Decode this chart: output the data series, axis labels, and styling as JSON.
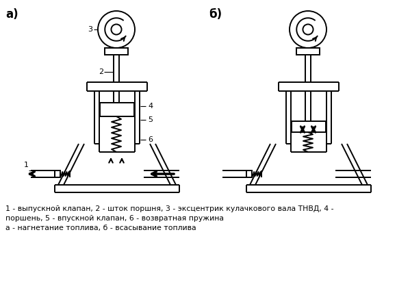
{
  "title_a": "а)",
  "title_b": "б)",
  "caption1": "1 - выпускной клапан, 2 - шток поршня, 3 - эксцентрик кулачкового вала ТНВД, 4 -",
  "caption2": "поршень, 5 - впускной клапан, 6 - возвратная пружина",
  "caption3": "а - нагнетание топлива, б - всасывание топлива",
  "bg": "#ffffff",
  "lc": "#000000",
  "lw": 1.4
}
